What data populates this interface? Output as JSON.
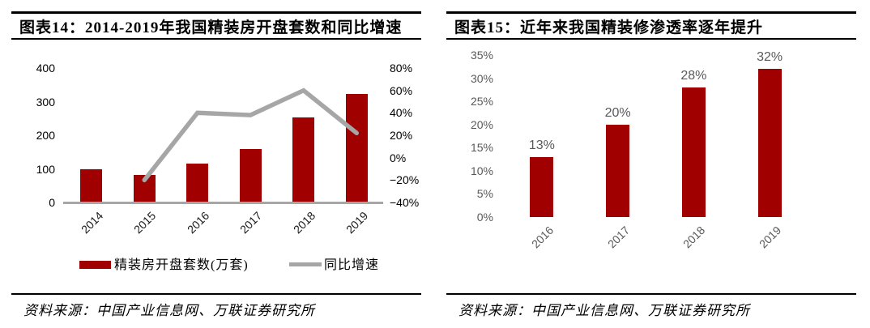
{
  "panels": [
    {
      "title": "图表14：2014-2019年我国精装房开盘套数和同比增速",
      "source": "资料来源：中国产业信息网、万联证券研究所"
    },
    {
      "title": "图表15：近年来我国精装修渗透率逐年提升",
      "source": "资料来源：中国产业信息网、万联证券研究所"
    }
  ],
  "colors": {
    "bar": "#A00000",
    "line": "#A6A6A6",
    "axis": "#A6A6A6",
    "gray_label": "#595959",
    "rule": "#000000"
  },
  "chart_data": [
    {
      "type": "bar",
      "subtype": "combo-bar-line",
      "title": "2014-2019年我国精装房开盘套数和同比增速",
      "categories": [
        "2014",
        "2015",
        "2016",
        "2017",
        "2018",
        "2019"
      ],
      "series": [
        {
          "name": "精装房开盘套数(万套)",
          "type": "bar",
          "axis": "left",
          "values": [
            100,
            82,
            115,
            158,
            253,
            323
          ]
        },
        {
          "name": "同比增速",
          "type": "line",
          "axis": "right",
          "unit": "%",
          "values": [
            null,
            -20,
            40,
            38,
            60,
            22
          ]
        }
      ],
      "left_axis": {
        "min": 0,
        "max": 400,
        "ticks": [
          "400",
          "300",
          "200",
          "100",
          "0"
        ]
      },
      "right_axis": {
        "min": -40,
        "max": 80,
        "ticks": [
          "80%",
          "60%",
          "40%",
          "20%",
          "0%",
          "−20%",
          "−40%"
        ]
      },
      "legend_position": "bottom",
      "grid": false
    },
    {
      "type": "bar",
      "title": "近年来我国精装修渗透率逐年提升",
      "categories": [
        "2016",
        "2017",
        "2018",
        "2019"
      ],
      "values": [
        13,
        20,
        28,
        32
      ],
      "data_labels": [
        "13%",
        "20%",
        "28%",
        "32%"
      ],
      "ylim": [
        0,
        35
      ],
      "yticks": [
        "35%",
        "30%",
        "25%",
        "20%",
        "15%",
        "10%",
        "5%",
        "0%"
      ],
      "grid": false,
      "legend_position": "none"
    }
  ]
}
